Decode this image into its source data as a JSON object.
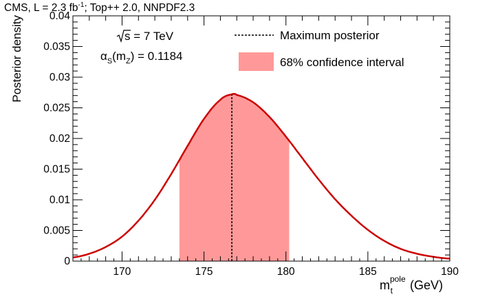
{
  "header": {
    "prefix": "CMS, L = 2.3 fb",
    "sup": "-1",
    "suffix": "; Top++ 2.0, NNPDF2.3"
  },
  "annotations": {
    "energy_sqrt": "s",
    "energy_rest": " = 7 TeV",
    "alpha_symbol": "α",
    "alpha_sub": "S",
    "alpha_mid": "(m",
    "alpha_mid_sub": "Z",
    "alpha_rest": ") = 0.1184"
  },
  "colors": {
    "curve": "#cc0000",
    "band": "#ff9999",
    "axis": "#000000"
  },
  "chart_data": {
    "type": "line",
    "title": "",
    "ylabel": "Posterior density",
    "xlabel": {
      "main": "m",
      "sub": "t",
      "sup": "pole",
      "unit": " (GeV)"
    },
    "xlim": [
      167,
      190
    ],
    "ylim": [
      0,
      0.04
    ],
    "x_ticks": [
      "170",
      "175",
      "180",
      "185",
      "190"
    ],
    "y_ticks": [
      "0",
      "0.005",
      "0.01",
      "0.015",
      "0.02",
      "0.025",
      "0.03",
      "0.035",
      "0.04"
    ],
    "legend_position": "top-right",
    "legend": [
      {
        "label": "Maximum posterior",
        "style": "dashed-line"
      },
      {
        "label": "68% confidence interval",
        "style": "filled-box"
      }
    ],
    "series": [
      {
        "name": "Posterior",
        "x": [
          167,
          168,
          169,
          170,
          171,
          172,
          173,
          174,
          175,
          176,
          176.7,
          177,
          178,
          179,
          180,
          181,
          182,
          183,
          184,
          185,
          186,
          187,
          188,
          189,
          190
        ],
        "y": [
          0.0006,
          0.0012,
          0.0023,
          0.004,
          0.0066,
          0.01,
          0.0142,
          0.0188,
          0.0232,
          0.0263,
          0.0272,
          0.0271,
          0.0259,
          0.0235,
          0.0203,
          0.0168,
          0.0133,
          0.0101,
          0.0074,
          0.0051,
          0.0033,
          0.002,
          0.0012,
          0.0007,
          0.0004
        ]
      }
    ],
    "maximum_posterior": 176.7,
    "confidence_interval_68": [
      173.5,
      180.2
    ]
  }
}
